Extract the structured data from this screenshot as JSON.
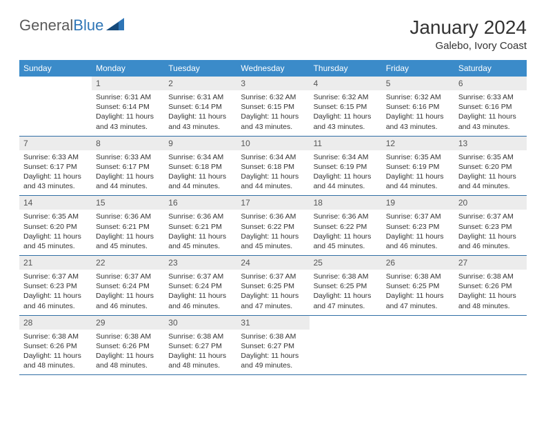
{
  "brand": {
    "text1": "General",
    "text2": "Blue"
  },
  "title": "January 2024",
  "location": "Galebo, Ivory Coast",
  "colors": {
    "header_bg": "#3b8bc9",
    "header_text": "#ffffff",
    "daynum_bg": "#ececec",
    "border": "#2e6da4",
    "brand_gray": "#5a5a5a",
    "brand_blue": "#2e75b6"
  },
  "day_labels": [
    "Sunday",
    "Monday",
    "Tuesday",
    "Wednesday",
    "Thursday",
    "Friday",
    "Saturday"
  ],
  "weeks": [
    [
      {
        "num": "",
        "sunrise": "",
        "sunset": "",
        "daylight": ""
      },
      {
        "num": "1",
        "sunrise": "Sunrise: 6:31 AM",
        "sunset": "Sunset: 6:14 PM",
        "daylight": "Daylight: 11 hours and 43 minutes."
      },
      {
        "num": "2",
        "sunrise": "Sunrise: 6:31 AM",
        "sunset": "Sunset: 6:14 PM",
        "daylight": "Daylight: 11 hours and 43 minutes."
      },
      {
        "num": "3",
        "sunrise": "Sunrise: 6:32 AM",
        "sunset": "Sunset: 6:15 PM",
        "daylight": "Daylight: 11 hours and 43 minutes."
      },
      {
        "num": "4",
        "sunrise": "Sunrise: 6:32 AM",
        "sunset": "Sunset: 6:15 PM",
        "daylight": "Daylight: 11 hours and 43 minutes."
      },
      {
        "num": "5",
        "sunrise": "Sunrise: 6:32 AM",
        "sunset": "Sunset: 6:16 PM",
        "daylight": "Daylight: 11 hours and 43 minutes."
      },
      {
        "num": "6",
        "sunrise": "Sunrise: 6:33 AM",
        "sunset": "Sunset: 6:16 PM",
        "daylight": "Daylight: 11 hours and 43 minutes."
      }
    ],
    [
      {
        "num": "7",
        "sunrise": "Sunrise: 6:33 AM",
        "sunset": "Sunset: 6:17 PM",
        "daylight": "Daylight: 11 hours and 43 minutes."
      },
      {
        "num": "8",
        "sunrise": "Sunrise: 6:33 AM",
        "sunset": "Sunset: 6:17 PM",
        "daylight": "Daylight: 11 hours and 44 minutes."
      },
      {
        "num": "9",
        "sunrise": "Sunrise: 6:34 AM",
        "sunset": "Sunset: 6:18 PM",
        "daylight": "Daylight: 11 hours and 44 minutes."
      },
      {
        "num": "10",
        "sunrise": "Sunrise: 6:34 AM",
        "sunset": "Sunset: 6:18 PM",
        "daylight": "Daylight: 11 hours and 44 minutes."
      },
      {
        "num": "11",
        "sunrise": "Sunrise: 6:34 AM",
        "sunset": "Sunset: 6:19 PM",
        "daylight": "Daylight: 11 hours and 44 minutes."
      },
      {
        "num": "12",
        "sunrise": "Sunrise: 6:35 AM",
        "sunset": "Sunset: 6:19 PM",
        "daylight": "Daylight: 11 hours and 44 minutes."
      },
      {
        "num": "13",
        "sunrise": "Sunrise: 6:35 AM",
        "sunset": "Sunset: 6:20 PM",
        "daylight": "Daylight: 11 hours and 44 minutes."
      }
    ],
    [
      {
        "num": "14",
        "sunrise": "Sunrise: 6:35 AM",
        "sunset": "Sunset: 6:20 PM",
        "daylight": "Daylight: 11 hours and 45 minutes."
      },
      {
        "num": "15",
        "sunrise": "Sunrise: 6:36 AM",
        "sunset": "Sunset: 6:21 PM",
        "daylight": "Daylight: 11 hours and 45 minutes."
      },
      {
        "num": "16",
        "sunrise": "Sunrise: 6:36 AM",
        "sunset": "Sunset: 6:21 PM",
        "daylight": "Daylight: 11 hours and 45 minutes."
      },
      {
        "num": "17",
        "sunrise": "Sunrise: 6:36 AM",
        "sunset": "Sunset: 6:22 PM",
        "daylight": "Daylight: 11 hours and 45 minutes."
      },
      {
        "num": "18",
        "sunrise": "Sunrise: 6:36 AM",
        "sunset": "Sunset: 6:22 PM",
        "daylight": "Daylight: 11 hours and 45 minutes."
      },
      {
        "num": "19",
        "sunrise": "Sunrise: 6:37 AM",
        "sunset": "Sunset: 6:23 PM",
        "daylight": "Daylight: 11 hours and 46 minutes."
      },
      {
        "num": "20",
        "sunrise": "Sunrise: 6:37 AM",
        "sunset": "Sunset: 6:23 PM",
        "daylight": "Daylight: 11 hours and 46 minutes."
      }
    ],
    [
      {
        "num": "21",
        "sunrise": "Sunrise: 6:37 AM",
        "sunset": "Sunset: 6:23 PM",
        "daylight": "Daylight: 11 hours and 46 minutes."
      },
      {
        "num": "22",
        "sunrise": "Sunrise: 6:37 AM",
        "sunset": "Sunset: 6:24 PM",
        "daylight": "Daylight: 11 hours and 46 minutes."
      },
      {
        "num": "23",
        "sunrise": "Sunrise: 6:37 AM",
        "sunset": "Sunset: 6:24 PM",
        "daylight": "Daylight: 11 hours and 46 minutes."
      },
      {
        "num": "24",
        "sunrise": "Sunrise: 6:37 AM",
        "sunset": "Sunset: 6:25 PM",
        "daylight": "Daylight: 11 hours and 47 minutes."
      },
      {
        "num": "25",
        "sunrise": "Sunrise: 6:38 AM",
        "sunset": "Sunset: 6:25 PM",
        "daylight": "Daylight: 11 hours and 47 minutes."
      },
      {
        "num": "26",
        "sunrise": "Sunrise: 6:38 AM",
        "sunset": "Sunset: 6:25 PM",
        "daylight": "Daylight: 11 hours and 47 minutes."
      },
      {
        "num": "27",
        "sunrise": "Sunrise: 6:38 AM",
        "sunset": "Sunset: 6:26 PM",
        "daylight": "Daylight: 11 hours and 48 minutes."
      }
    ],
    [
      {
        "num": "28",
        "sunrise": "Sunrise: 6:38 AM",
        "sunset": "Sunset: 6:26 PM",
        "daylight": "Daylight: 11 hours and 48 minutes."
      },
      {
        "num": "29",
        "sunrise": "Sunrise: 6:38 AM",
        "sunset": "Sunset: 6:26 PM",
        "daylight": "Daylight: 11 hours and 48 minutes."
      },
      {
        "num": "30",
        "sunrise": "Sunrise: 6:38 AM",
        "sunset": "Sunset: 6:27 PM",
        "daylight": "Daylight: 11 hours and 48 minutes."
      },
      {
        "num": "31",
        "sunrise": "Sunrise: 6:38 AM",
        "sunset": "Sunset: 6:27 PM",
        "daylight": "Daylight: 11 hours and 49 minutes."
      },
      {
        "num": "",
        "sunrise": "",
        "sunset": "",
        "daylight": ""
      },
      {
        "num": "",
        "sunrise": "",
        "sunset": "",
        "daylight": ""
      },
      {
        "num": "",
        "sunrise": "",
        "sunset": "",
        "daylight": ""
      }
    ]
  ]
}
